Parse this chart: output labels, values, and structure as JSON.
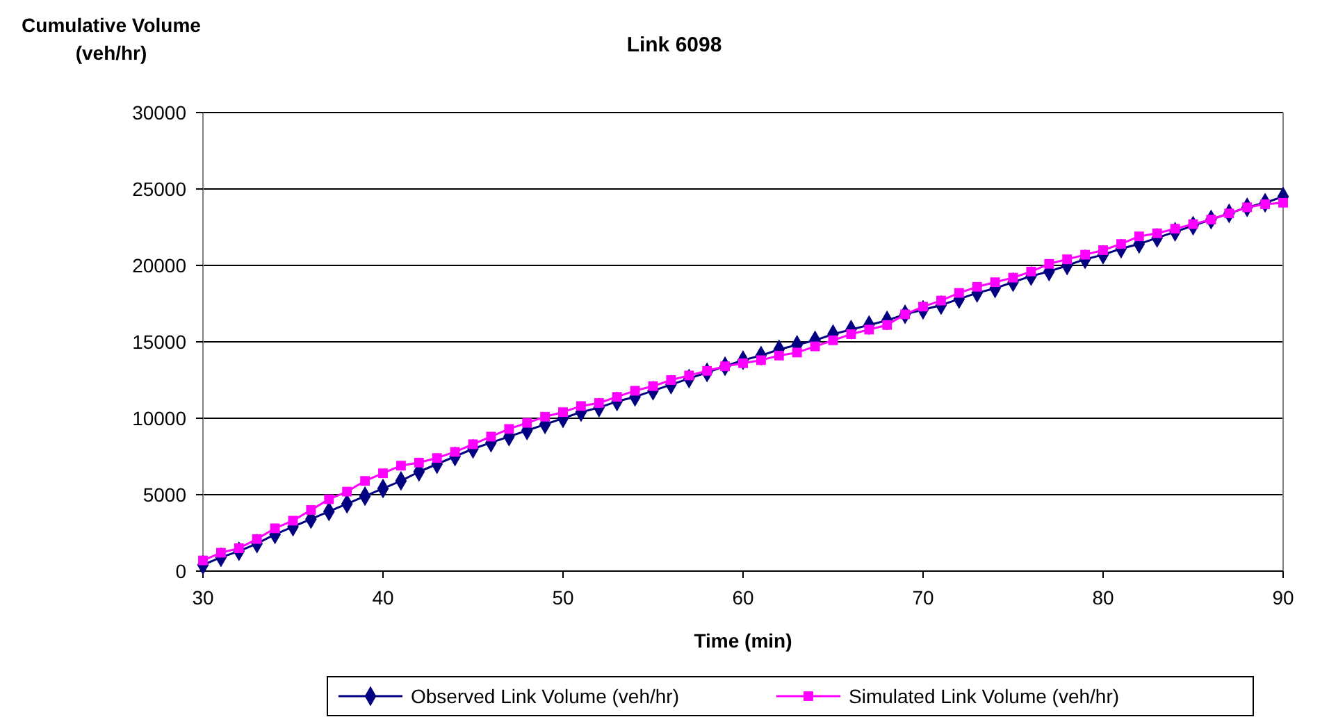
{
  "chart_data": {
    "type": "line",
    "title": "Link 6098",
    "xlabel": "Time (min)",
    "ylabel": "Cumulative Volume\n(veh/hr)",
    "x": [
      30,
      31,
      32,
      33,
      34,
      35,
      36,
      37,
      38,
      39,
      40,
      41,
      42,
      43,
      44,
      45,
      46,
      47,
      48,
      49,
      50,
      51,
      52,
      53,
      54,
      55,
      56,
      57,
      58,
      59,
      60,
      61,
      62,
      63,
      64,
      65,
      66,
      67,
      68,
      69,
      70,
      71,
      72,
      73,
      74,
      75,
      76,
      77,
      78,
      79,
      80,
      81,
      82,
      83,
      84,
      85,
      86,
      87,
      88,
      89,
      90
    ],
    "series": [
      {
        "name": "Observed Link Volume (veh/hr)",
        "color": "#000080",
        "marker": "diamond",
        "values": [
          400,
          900,
          1300,
          1800,
          2400,
          2900,
          3400,
          3900,
          4400,
          4900,
          5400,
          5900,
          6500,
          7000,
          7500,
          8000,
          8400,
          8800,
          9200,
          9600,
          10000,
          10400,
          10700,
          11100,
          11400,
          11800,
          12200,
          12600,
          13000,
          13400,
          13800,
          14100,
          14500,
          14800,
          15100,
          15500,
          15800,
          16100,
          16400,
          16800,
          17100,
          17400,
          17800,
          18200,
          18500,
          18900,
          19300,
          19600,
          20000,
          20400,
          20700,
          21100,
          21400,
          21800,
          22200,
          22600,
          23000,
          23400,
          23800,
          24100,
          24500
        ]
      },
      {
        "name": "Simulated Link Volume (veh/hr)",
        "color": "#ff00ff",
        "marker": "square",
        "values": [
          700,
          1200,
          1500,
          2100,
          2800,
          3300,
          4000,
          4700,
          5200,
          5900,
          6400,
          6900,
          7100,
          7400,
          7800,
          8300,
          8800,
          9300,
          9700,
          10100,
          10400,
          10800,
          11000,
          11400,
          11800,
          12100,
          12500,
          12800,
          13100,
          13400,
          13600,
          13800,
          14100,
          14300,
          14700,
          15100,
          15500,
          15800,
          16100,
          16800,
          17300,
          17700,
          18200,
          18600,
          18900,
          19200,
          19600,
          20100,
          20400,
          20700,
          21000,
          21400,
          21900,
          22100,
          22400,
          22700,
          23000,
          23400,
          23800,
          24000,
          24100
        ]
      }
    ],
    "xlim": [
      30,
      90
    ],
    "xticks": [
      30,
      40,
      50,
      60,
      70,
      80,
      90
    ],
    "ylim": [
      0,
      30000
    ],
    "yticks": [
      0,
      5000,
      10000,
      15000,
      20000,
      25000,
      30000
    ],
    "grid": "y",
    "legend": "bottom"
  }
}
